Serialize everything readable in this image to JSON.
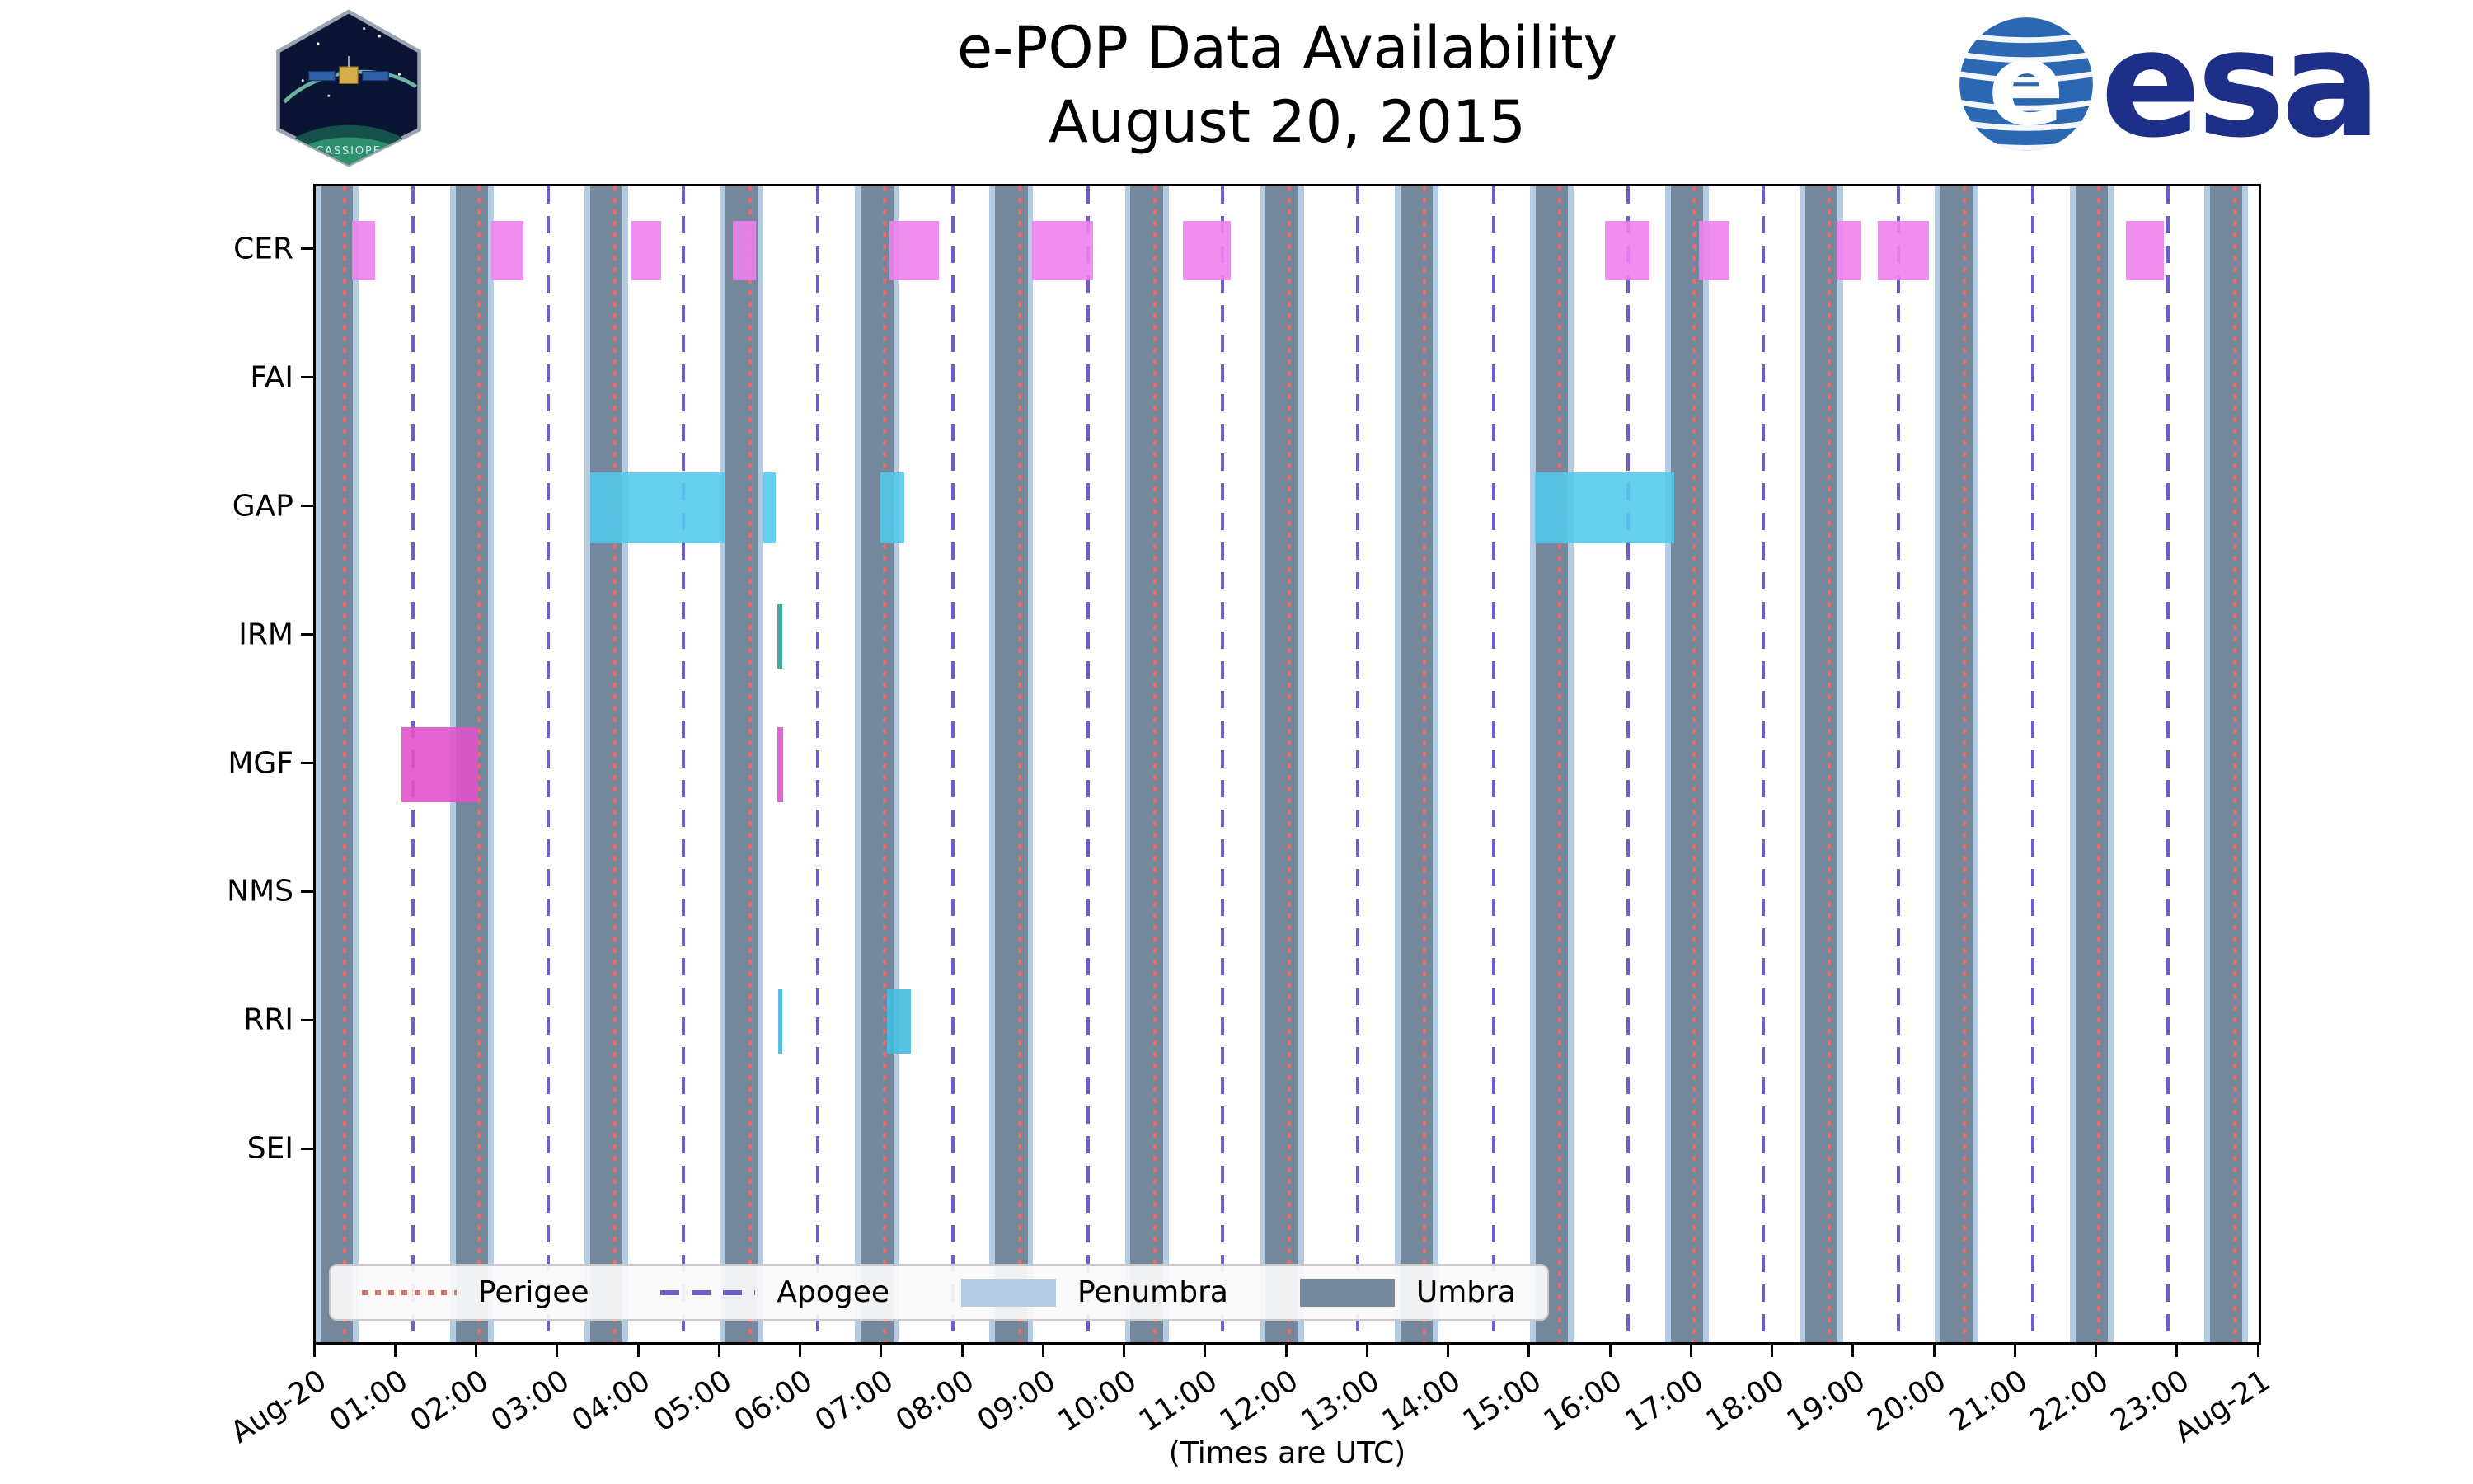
{
  "title": {
    "line1": "e-POP Data Availability",
    "line2": "August 20, 2015"
  },
  "xlabel": "(Times are UTC)",
  "logos": {
    "esa_text": "esa",
    "cassiope_text": "CASSIOPE"
  },
  "legend": [
    {
      "label": "Perigee",
      "swatch": "dotted",
      "color": "#EA6A6A"
    },
    {
      "label": "Apogee",
      "swatch": "dashed",
      "color": "#6E5ECB"
    },
    {
      "label": "Penumbra",
      "swatch": "patch",
      "color": "#B3CCE4"
    },
    {
      "label": "Umbra",
      "swatch": "patch",
      "color": "#75879B"
    }
  ],
  "chart_data": {
    "type": "gantt",
    "title": "e-POP Data Availability — August 20, 2015",
    "xlabel": "(Times are UTC)",
    "xlim_hours": [
      0,
      24
    ],
    "x_tick_labels": [
      "Aug-20",
      "01:00",
      "02:00",
      "03:00",
      "04:00",
      "05:00",
      "06:00",
      "07:00",
      "08:00",
      "09:00",
      "10:00",
      "11:00",
      "12:00",
      "13:00",
      "14:00",
      "15:00",
      "16:00",
      "17:00",
      "18:00",
      "19:00",
      "20:00",
      "21:00",
      "22:00",
      "23:00",
      "Aug-21"
    ],
    "instruments": [
      "CER",
      "FAI",
      "GAP",
      "IRM",
      "MGF",
      "NMS",
      "RRI",
      "SEI"
    ],
    "colors": {
      "umbra": "#75879B",
      "penumbra": "#B3CCE4",
      "perigee": "#EA6A6A",
      "apogee": "#6E5ECB"
    },
    "orbit": {
      "period_hours": 1.667,
      "umbra_duration_hours": 0.4,
      "penumbra_edge_hours": 0.07,
      "umbra_starts_hours": [
        0.06,
        1.73,
        3.39,
        5.06,
        6.73,
        8.39,
        10.06,
        11.73,
        13.39,
        15.06,
        16.73,
        18.39,
        20.06,
        21.73,
        23.39
      ],
      "perigee_hours": [
        0.36,
        2.02,
        3.69,
        5.36,
        7.02,
        8.69,
        10.36,
        12.02,
        13.69,
        15.36,
        17.02,
        18.69,
        20.36,
        22.02,
        23.69
      ],
      "apogee_hours": [
        1.2,
        2.87,
        4.54,
        6.2,
        7.87,
        9.54,
        11.2,
        12.87,
        14.54,
        16.2,
        17.87,
        19.54,
        21.2,
        22.87
      ]
    },
    "availability": [
      {
        "instrument": "CER",
        "color": "#EE82EE",
        "bar_height": 0.46,
        "intervals": [
          [
            0.45,
            0.73
          ],
          [
            2.17,
            2.56
          ],
          [
            3.9,
            4.26
          ],
          [
            5.15,
            5.44
          ],
          [
            7.08,
            7.69
          ],
          [
            8.84,
            9.6
          ],
          [
            10.71,
            11.3
          ],
          [
            15.92,
            16.47
          ],
          [
            17.08,
            17.46
          ],
          [
            18.78,
            19.07
          ],
          [
            19.29,
            19.92
          ],
          [
            22.35,
            22.82
          ]
        ]
      },
      {
        "instrument": "GAP",
        "color": "#55C9EC",
        "bar_height": 0.55,
        "intervals": [
          [
            3.39,
            5.05
          ],
          [
            5.52,
            5.68
          ],
          [
            6.97,
            7.27
          ],
          [
            15.05,
            16.77
          ]
        ]
      },
      {
        "instrument": "IRM",
        "color": "#2EA393",
        "bar_height": 0.5,
        "intervals": [
          [
            5.7,
            5.76
          ]
        ]
      },
      {
        "instrument": "MGF",
        "color": "#E053CC",
        "bar_height": 0.58,
        "intervals": [
          [
            1.06,
            2.01
          ],
          [
            5.7,
            5.77
          ]
        ]
      },
      {
        "instrument": "RRI",
        "color": "#43BBDF",
        "bar_height": 0.5,
        "intervals": [
          [
            5.71,
            5.76
          ],
          [
            7.05,
            7.35
          ]
        ]
      }
    ]
  }
}
